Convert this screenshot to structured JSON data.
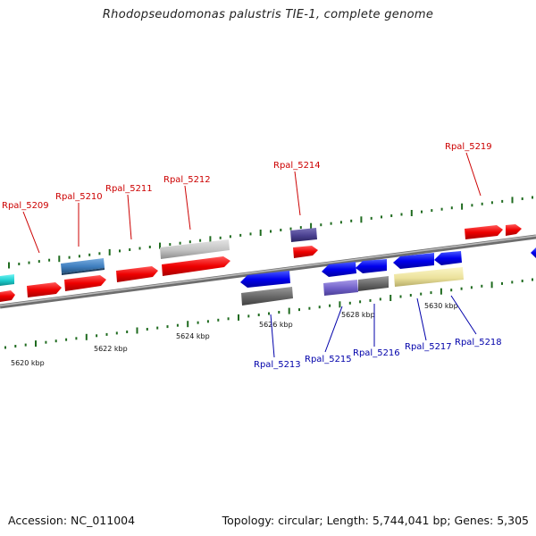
{
  "title": "Rhodopseudomonas palustris TIE-1, complete genome",
  "footer": {
    "accession": "Accession: NC_011004",
    "topology": "Topology: circular; Length: 5,744,041 bp; Genes: 5,305"
  },
  "colors": {
    "forward_label": "#cc0000",
    "reverse_label": "#0000aa",
    "tick": "#1f6b1f",
    "backbone": "#8a8a8a"
  },
  "kbp_labels": [
    "5620 kbp",
    "5622 kbp",
    "5624 kbp",
    "5626 kbp",
    "5628 kbp",
    "5630 kbp"
  ],
  "forward_gene_labels": [
    "Rpal_5209",
    "Rpal_5210",
    "Rpal_5211",
    "Rpal_5212",
    "Rpal_5214",
    "Rpal_5219"
  ],
  "reverse_gene_labels": [
    "Rpal_5213",
    "Rpal_5215",
    "Rpal_5216",
    "Rpal_5217",
    "Rpal_5218"
  ]
}
